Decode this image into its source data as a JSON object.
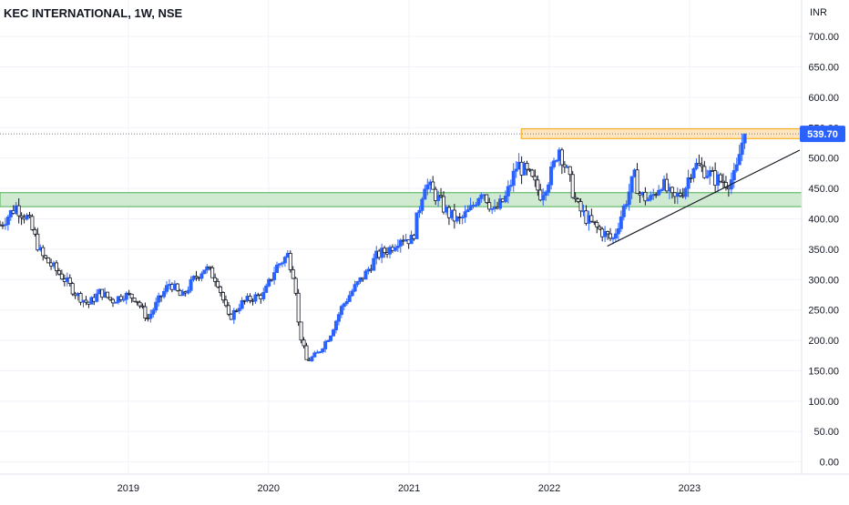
{
  "chart_data": {
    "type": "candlestick",
    "title": "KEC INTERNATIONAL, 1W, NSE",
    "currency": "INR",
    "ylim": [
      -20,
      760
    ],
    "y_ticks": [
      0,
      50,
      100,
      150,
      200,
      250,
      300,
      350,
      400,
      450,
      500,
      550,
      600,
      650,
      700
    ],
    "y_tick_labels": [
      "0.00",
      "50.00",
      "100.00",
      "150.00",
      "200.00",
      "250.00",
      "300.00",
      "350.00",
      "400.00",
      "450.00",
      "500.00",
      "550.00",
      "600.00",
      "650.00",
      "700.00"
    ],
    "x_range": [
      "2018-02-01",
      "2023-10-20"
    ],
    "x_ticks": [
      "2019-01-01",
      "2020-01-01",
      "2021-01-01",
      "2022-01-01",
      "2023-01-01"
    ],
    "x_tick_labels": [
      "2019",
      "2020",
      "2021",
      "2022",
      "2023"
    ],
    "grid": true,
    "last_price": 539.7,
    "last_price_label": "539.70",
    "price_path": [
      [
        "2018-02-01",
        390
      ],
      [
        "2018-03-15",
        420
      ],
      [
        "2018-04-15",
        400
      ],
      [
        "2018-05-20",
        340
      ],
      [
        "2018-06-20",
        320
      ],
      [
        "2018-07-20",
        300
      ],
      [
        "2018-08-20",
        275
      ],
      [
        "2018-09-20",
        260
      ],
      [
        "2018-10-20",
        280
      ],
      [
        "2018-11-20",
        265
      ],
      [
        "2018-12-20",
        275
      ],
      [
        "2019-01-20",
        270
      ],
      [
        "2019-02-20",
        235
      ],
      [
        "2019-03-20",
        265
      ],
      [
        "2019-04-20",
        295
      ],
      [
        "2019-05-20",
        270
      ],
      [
        "2019-06-20",
        300
      ],
      [
        "2019-07-20",
        320
      ],
      [
        "2019-08-20",
        300
      ],
      [
        "2019-09-20",
        235
      ],
      [
        "2019-10-20",
        260
      ],
      [
        "2019-11-20",
        270
      ],
      [
        "2019-12-20",
        275
      ],
      [
        "2020-01-20",
        320
      ],
      [
        "2020-02-20",
        340
      ],
      [
        "2020-03-10",
        300
      ],
      [
        "2020-03-20",
        220
      ],
      [
        "2020-04-10",
        165
      ],
      [
        "2020-05-10",
        180
      ],
      [
        "2020-06-10",
        210
      ],
      [
        "2020-07-10",
        255
      ],
      [
        "2020-08-10",
        285
      ],
      [
        "2020-09-10",
        310
      ],
      [
        "2020-10-10",
        340
      ],
      [
        "2020-11-10",
        350
      ],
      [
        "2020-12-10",
        370
      ],
      [
        "2021-01-10",
        365
      ],
      [
        "2021-02-10",
        460
      ],
      [
        "2021-03-10",
        440
      ],
      [
        "2021-04-10",
        410
      ],
      [
        "2021-05-10",
        395
      ],
      [
        "2021-06-10",
        415
      ],
      [
        "2021-07-10",
        450
      ],
      [
        "2021-08-10",
        410
      ],
      [
        "2021-09-10",
        435
      ],
      [
        "2021-10-10",
        490
      ],
      [
        "2021-11-10",
        470
      ],
      [
        "2021-12-10",
        440
      ],
      [
        "2022-01-10",
        480
      ],
      [
        "2022-01-25",
        520
      ],
      [
        "2022-02-15",
        480
      ],
      [
        "2022-03-15",
        420
      ],
      [
        "2022-04-15",
        395
      ],
      [
        "2022-05-15",
        380
      ],
      [
        "2022-06-15",
        365
      ],
      [
        "2022-07-15",
        420
      ],
      [
        "2022-08-10",
        470
      ],
      [
        "2022-08-25",
        440
      ],
      [
        "2022-09-20",
        430
      ],
      [
        "2022-10-20",
        460
      ],
      [
        "2022-11-20",
        430
      ],
      [
        "2022-12-20",
        450
      ],
      [
        "2023-01-10",
        490
      ],
      [
        "2023-02-10",
        480
      ],
      [
        "2023-03-10",
        465
      ],
      [
        "2023-04-10",
        460
      ],
      [
        "2023-05-01",
        470
      ],
      [
        "2023-05-15",
        520
      ],
      [
        "2023-05-25",
        539.7
      ]
    ],
    "annotations": {
      "resistance_zone": {
        "from": 532,
        "to": 548,
        "x_start": "2021-10-20",
        "x_end": "2023-10-20",
        "color": "#ffe0b2",
        "border": "#f7a400"
      },
      "support_zone": {
        "from": 420,
        "to": 443,
        "x_start": "2018-02-01",
        "x_end": "2023-10-20",
        "color": "#c8e6c9",
        "border": "#4caf50"
      },
      "trendline": {
        "points": [
          [
            "2022-06-01",
            355
          ],
          [
            "2023-10-15",
            513
          ]
        ],
        "color": "#131722"
      },
      "last_price_line": {
        "value": 539.7,
        "color": "#2962ff"
      }
    },
    "colors": {
      "up": "#2962ff",
      "down": "#131722",
      "grid": "#f0f3fa",
      "axis_text": "#131722",
      "label_bg": "#2962ff"
    }
  }
}
